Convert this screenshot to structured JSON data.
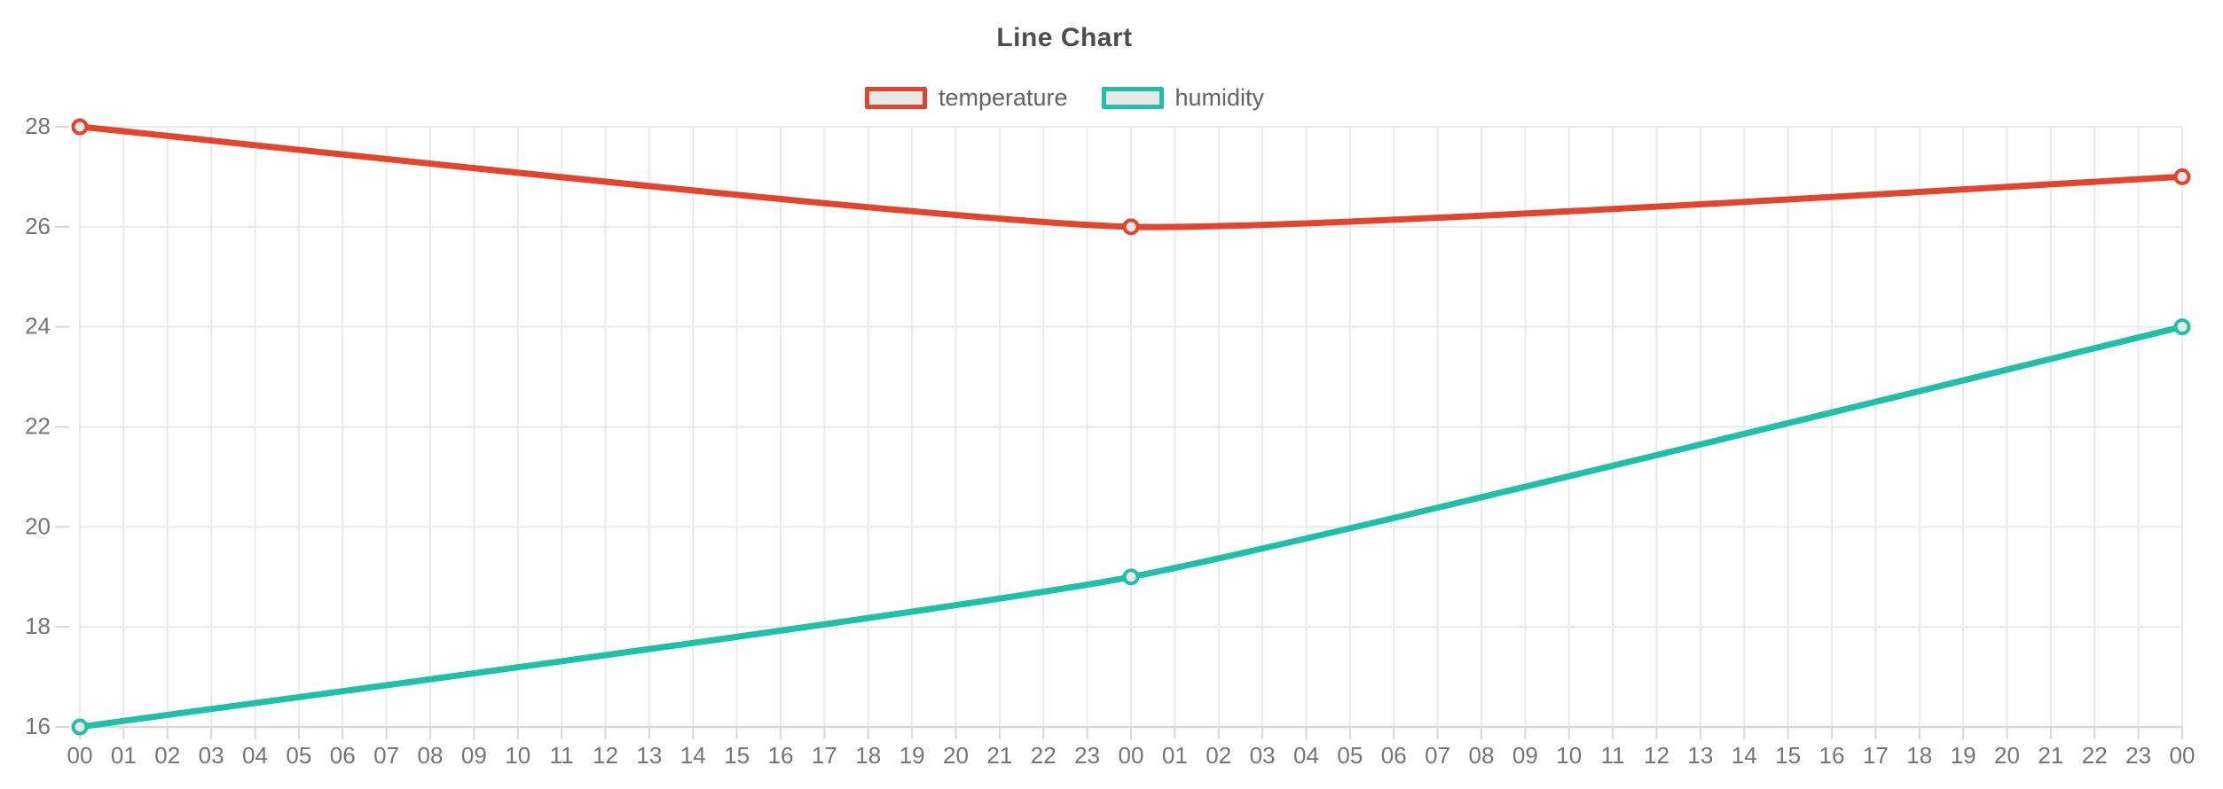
{
  "chart_data": {
    "type": "line",
    "title": "Line Chart",
    "xlabel": "",
    "ylabel": "",
    "ylim": [
      16,
      28
    ],
    "yticks": [
      16,
      18,
      20,
      22,
      24,
      26,
      28
    ],
    "grid": true,
    "legend_position": "top",
    "x_labels": [
      "00",
      "01",
      "02",
      "03",
      "04",
      "05",
      "06",
      "07",
      "08",
      "09",
      "10",
      "11",
      "12",
      "13",
      "14",
      "15",
      "16",
      "17",
      "18",
      "19",
      "20",
      "21",
      "22",
      "23",
      "00",
      "01",
      "02",
      "03",
      "04",
      "05",
      "06",
      "07",
      "08",
      "09",
      "10",
      "11",
      "12",
      "13",
      "14",
      "15",
      "16",
      "17",
      "18",
      "19",
      "20",
      "21",
      "22",
      "23",
      "00"
    ],
    "series": [
      {
        "name": "temperature",
        "color": "#E2442C",
        "points": [
          {
            "x_index": 0,
            "x_label": "00",
            "value": 28
          },
          {
            "x_index": 24,
            "x_label": "00",
            "value": 26
          },
          {
            "x_index": 48,
            "x_label": "00",
            "value": 27
          }
        ]
      },
      {
        "name": "humidity",
        "color": "#1FBFA8",
        "points": [
          {
            "x_index": 0,
            "x_label": "00",
            "value": 16
          },
          {
            "x_index": 24,
            "x_label": "00",
            "value": 19
          },
          {
            "x_index": 48,
            "x_label": "00",
            "value": 24
          }
        ]
      }
    ],
    "colors": {
      "background": "#FFFFFF",
      "grid": "#EAEAEA",
      "axis_tick": "#D8D8D8",
      "tick_text": "#757575",
      "title_text": "#4D4D4D",
      "legend_text": "#636363",
      "point_fill": "#E8E8E8"
    }
  }
}
